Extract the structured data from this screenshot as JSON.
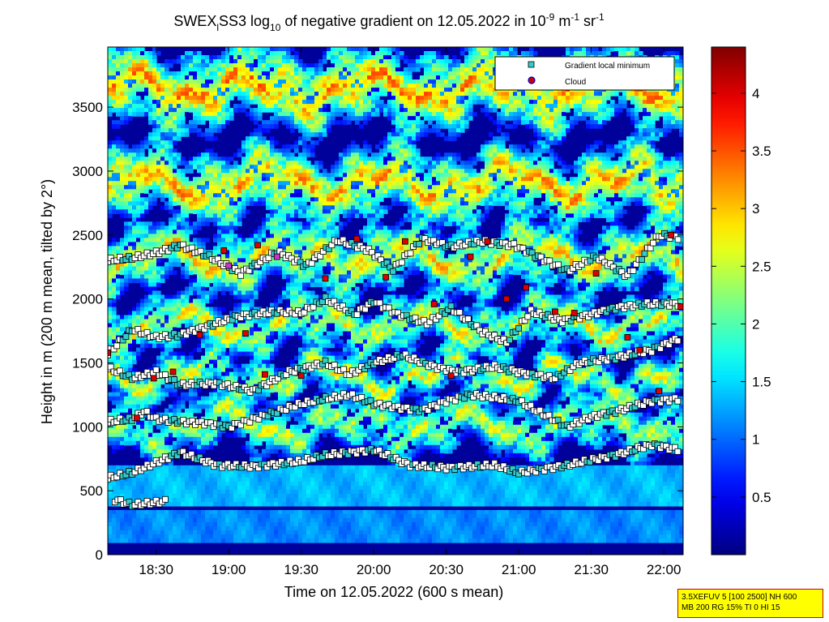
{
  "chart_data": {
    "type": "heatmap",
    "title": {
      "main": "SWEX",
      "sub1": "l",
      "part2": "SS3 log",
      "sub2": "10",
      "part3": " of negative gradient on 12.05.2022 in 10",
      "sup1": "-9",
      "part4": " m",
      "sup2": "-1",
      "part5": " sr",
      "sup3": "-1"
    },
    "xlabel": "Time on 12.05.2022 (600 s mean)",
    "ylabel": "Height in m (200 m mean, tilted by 2°)",
    "x_ticks": [
      "18:30",
      "19:00",
      "19:30",
      "20:00",
      "20:30",
      "21:00",
      "21:30",
      "22:00"
    ],
    "x_tick_minutes": [
      1110,
      1140,
      1170,
      1200,
      1230,
      1260,
      1290,
      1320
    ],
    "x_range_minutes": [
      1090,
      1328
    ],
    "y_ticks": [
      0,
      500,
      1000,
      1500,
      2000,
      2500,
      3000,
      3500
    ],
    "ylim": [
      0,
      3970
    ],
    "colorbar": {
      "colormap": "jet",
      "ticks": [
        0.5,
        1,
        1.5,
        2,
        2.5,
        3,
        3.5,
        4
      ],
      "range": [
        0,
        4.4
      ]
    },
    "legend": {
      "position": "top-right",
      "entries": [
        {
          "label": "Gradient local minimum",
          "marker": "square",
          "color": "#33cccc"
        },
        {
          "label": "Cloud",
          "marker": "circle",
          "color": "#cc0000",
          "edge": "#0000cc"
        }
      ]
    },
    "layers": [
      {
        "name": "surface",
        "h0": 80,
        "h1": 350,
        "level": 1.15
      },
      {
        "name": "boundary",
        "h0": 380,
        "h1": 700,
        "level": 1.35
      },
      {
        "name": "layer-1000",
        "base": 1020,
        "width": 230,
        "level": 2.2
      },
      {
        "name": "layer-1400",
        "base": 1390,
        "width": 180,
        "level": 2.3
      },
      {
        "name": "layer-1800",
        "base": 1800,
        "width": 220,
        "level": 2.4
      },
      {
        "name": "layer-2300",
        "base": 2320,
        "width": 260,
        "level": 2.6
      },
      {
        "name": "layer-2900",
        "base": 2900,
        "width": 300,
        "level": 2.8
      },
      {
        "name": "layer-3600",
        "base": 3650,
        "width": 330,
        "level": 2.9
      }
    ],
    "marker_tracks": [
      {
        "name": "track-600",
        "points": [
          [
            1090,
            600
          ],
          [
            1100,
            640
          ],
          [
            1110,
            720
          ],
          [
            1120,
            800
          ],
          [
            1135,
            700
          ],
          [
            1150,
            690
          ],
          [
            1170,
            730
          ],
          [
            1180,
            780
          ],
          [
            1200,
            820
          ],
          [
            1215,
            700
          ],
          [
            1230,
            680
          ],
          [
            1250,
            700
          ],
          [
            1260,
            640
          ],
          [
            1280,
            700
          ],
          [
            1300,
            780
          ],
          [
            1315,
            860
          ],
          [
            1327,
            820
          ]
        ]
      },
      {
        "name": "track-400",
        "points": [
          [
            1093,
            430
          ],
          [
            1100,
            390
          ],
          [
            1110,
            410
          ],
          [
            1115,
            420
          ]
        ]
      },
      {
        "name": "track-1000",
        "points": [
          [
            1090,
            1040
          ],
          [
            1100,
            1060
          ],
          [
            1105,
            1120
          ],
          [
            1110,
            1060
          ],
          [
            1120,
            1040
          ],
          [
            1130,
            1030
          ],
          [
            1140,
            1000
          ],
          [
            1150,
            1060
          ],
          [
            1160,
            1120
          ],
          [
            1170,
            1180
          ],
          [
            1180,
            1220
          ],
          [
            1190,
            1250
          ],
          [
            1200,
            1180
          ],
          [
            1210,
            1150
          ],
          [
            1220,
            1130
          ],
          [
            1230,
            1200
          ],
          [
            1240,
            1250
          ],
          [
            1250,
            1230
          ],
          [
            1260,
            1200
          ],
          [
            1270,
            1100
          ],
          [
            1280,
            1000
          ],
          [
            1290,
            1080
          ],
          [
            1300,
            1120
          ],
          [
            1315,
            1200
          ],
          [
            1327,
            1220
          ]
        ]
      },
      {
        "name": "track-1400",
        "points": [
          [
            1090,
            1460
          ],
          [
            1100,
            1380
          ],
          [
            1110,
            1430
          ],
          [
            1120,
            1330
          ],
          [
            1135,
            1340
          ],
          [
            1150,
            1280
          ],
          [
            1165,
            1430
          ],
          [
            1180,
            1500
          ],
          [
            1190,
            1410
          ],
          [
            1200,
            1500
          ],
          [
            1212,
            1560
          ],
          [
            1225,
            1470
          ],
          [
            1235,
            1430
          ],
          [
            1250,
            1470
          ],
          [
            1262,
            1420
          ],
          [
            1275,
            1380
          ],
          [
            1285,
            1500
          ],
          [
            1300,
            1540
          ],
          [
            1315,
            1600
          ],
          [
            1327,
            1700
          ]
        ]
      },
      {
        "name": "track-1800",
        "points": [
          [
            1090,
            1570
          ],
          [
            1100,
            1760
          ],
          [
            1110,
            1700
          ],
          [
            1120,
            1720
          ],
          [
            1130,
            1780
          ],
          [
            1145,
            1870
          ],
          [
            1160,
            1900
          ],
          [
            1170,
            1890
          ],
          [
            1180,
            2000
          ],
          [
            1192,
            1880
          ],
          [
            1200,
            1980
          ],
          [
            1210,
            1880
          ],
          [
            1222,
            1810
          ],
          [
            1232,
            1930
          ],
          [
            1245,
            1740
          ],
          [
            1255,
            1660
          ],
          [
            1265,
            1900
          ],
          [
            1278,
            1830
          ],
          [
            1290,
            1880
          ],
          [
            1300,
            1930
          ],
          [
            1312,
            1960
          ],
          [
            1327,
            1960
          ]
        ]
      },
      {
        "name": "track-2300",
        "points": [
          [
            1090,
            2300
          ],
          [
            1100,
            2320
          ],
          [
            1110,
            2360
          ],
          [
            1120,
            2420
          ],
          [
            1132,
            2330
          ],
          [
            1145,
            2200
          ],
          [
            1160,
            2370
          ],
          [
            1172,
            2260
          ],
          [
            1185,
            2460
          ],
          [
            1198,
            2380
          ],
          [
            1208,
            2230
          ],
          [
            1220,
            2470
          ],
          [
            1232,
            2410
          ],
          [
            1245,
            2450
          ],
          [
            1258,
            2420
          ],
          [
            1268,
            2330
          ],
          [
            1280,
            2220
          ],
          [
            1292,
            2330
          ],
          [
            1305,
            2180
          ],
          [
            1318,
            2500
          ],
          [
            1327,
            2480
          ]
        ]
      }
    ],
    "cloud_points": [
      [
        1090,
        1580
      ],
      [
        1102,
        1070
      ],
      [
        1109,
        1380
      ],
      [
        1117,
        1430
      ],
      [
        1128,
        1720
      ],
      [
        1138,
        2380
      ],
      [
        1147,
        1730
      ],
      [
        1152,
        2420
      ],
      [
        1155,
        1410
      ],
      [
        1170,
        1400
      ],
      [
        1180,
        2160
      ],
      [
        1193,
        2470
      ],
      [
        1205,
        2170
      ],
      [
        1213,
        2450
      ],
      [
        1225,
        1960
      ],
      [
        1232,
        1400
      ],
      [
        1240,
        2330
      ],
      [
        1247,
        2450
      ],
      [
        1255,
        2000
      ],
      [
        1263,
        2090
      ],
      [
        1275,
        1900
      ],
      [
        1283,
        1890
      ],
      [
        1292,
        2200
      ],
      [
        1305,
        1700
      ],
      [
        1310,
        1600
      ],
      [
        1318,
        1280
      ],
      [
        1323,
        2500
      ],
      [
        1327,
        1940
      ]
    ],
    "purple_points": [
      [
        1140,
        2260
      ],
      [
        1160,
        2330
      ]
    ]
  },
  "info_box": {
    "line1": "3.5XEFUV 5 [100 2500] NH 600",
    "line2": "MB 200 RG 15% TI 0 HI 15"
  }
}
